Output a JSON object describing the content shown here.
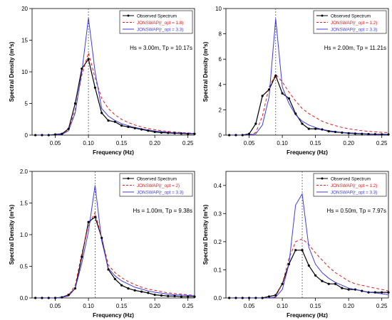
{
  "colors": {
    "observed": "#000000",
    "jonswap_opt": "#e41a1c",
    "jonswap_33": "#3b3bf0",
    "peak_line": "#555555"
  },
  "chart_data": [
    {
      "type": "line",
      "xlabel": "Frequency (Hz)",
      "ylabel": "Spectral Density (m²s)",
      "xlim": [
        0.015,
        0.26
      ],
      "ylim": [
        0,
        20
      ],
      "xticks": [
        "0.05",
        "0.10",
        "0.15",
        "0.20",
        "0.25"
      ],
      "yticks": [
        "0",
        "5",
        "10",
        "15",
        "20"
      ],
      "peak_line_x": 0.1,
      "annotation": "Hs = 3.00m,  Tp = 10.17s",
      "legend_position": "top-right",
      "series": [
        {
          "name": "Observed Spectrum",
          "style": "solid-markers",
          "x": [
            0.02,
            0.03,
            0.04,
            0.05,
            0.06,
            0.07,
            0.08,
            0.09,
            0.1,
            0.11,
            0.12,
            0.13,
            0.14,
            0.15,
            0.16,
            0.17,
            0.18,
            0.19,
            0.2,
            0.21,
            0.22,
            0.23,
            0.24,
            0.25,
            0.26
          ],
          "y": [
            0,
            0,
            0,
            0.1,
            0.2,
            1.0,
            5.0,
            10.5,
            12.0,
            7.5,
            3.5,
            2.3,
            2.1,
            1.5,
            1.3,
            1.1,
            0.9,
            0.7,
            0.5,
            0.4,
            0.35,
            0.3,
            0.25,
            0.2,
            0.2
          ]
        },
        {
          "name": "JONSWAP(r_opt = 1.8)",
          "style": "dashed",
          "x": [
            0.02,
            0.03,
            0.04,
            0.05,
            0.06,
            0.07,
            0.08,
            0.09,
            0.1,
            0.11,
            0.12,
            0.13,
            0.14,
            0.15,
            0.16,
            0.17,
            0.18,
            0.19,
            0.2,
            0.21,
            0.22,
            0.23,
            0.24,
            0.25,
            0.26
          ],
          "y": [
            0,
            0,
            0,
            0,
            0.1,
            0.9,
            4.0,
            9.5,
            13.0,
            9.0,
            5.8,
            4.2,
            3.2,
            2.5,
            2.0,
            1.6,
            1.3,
            1.05,
            0.85,
            0.7,
            0.6,
            0.5,
            0.4,
            0.35,
            0.3
          ]
        },
        {
          "name": "JONSWAP(r_opt = 3.3)",
          "style": "solid",
          "x": [
            0.02,
            0.03,
            0.04,
            0.05,
            0.06,
            0.07,
            0.08,
            0.09,
            0.1,
            0.11,
            0.12,
            0.13,
            0.14,
            0.15,
            0.16,
            0.17,
            0.18,
            0.19,
            0.2,
            0.21,
            0.22,
            0.23,
            0.24,
            0.25,
            0.26
          ],
          "y": [
            0,
            0,
            0,
            0,
            0.1,
            0.7,
            3.5,
            10.0,
            18.5,
            10.0,
            4.2,
            3.0,
            2.3,
            1.8,
            1.5,
            1.2,
            1.0,
            0.8,
            0.65,
            0.55,
            0.45,
            0.38,
            0.32,
            0.28,
            0.24
          ]
        }
      ]
    },
    {
      "type": "line",
      "xlabel": "Frequency (Hz)",
      "ylabel": "Spectral Density (m²s)",
      "xlim": [
        0.015,
        0.26
      ],
      "ylim": [
        0,
        10
      ],
      "xticks": [
        "0.05",
        "0.10",
        "0.15",
        "0.20",
        "0.25"
      ],
      "yticks": [
        "0",
        "2",
        "4",
        "6",
        "8",
        "10"
      ],
      "peak_line_x": 0.09,
      "annotation": "Hs = 2.00m,  Tp = 11.21s",
      "legend_position": "top-right",
      "series": [
        {
          "name": "Observed Spectrum",
          "style": "solid-markers",
          "x": [
            0.02,
            0.03,
            0.04,
            0.05,
            0.06,
            0.07,
            0.08,
            0.09,
            0.1,
            0.11,
            0.12,
            0.13,
            0.14,
            0.15,
            0.16,
            0.17,
            0.18,
            0.19,
            0.2,
            0.21,
            0.22,
            0.23,
            0.24,
            0.25,
            0.26
          ],
          "y": [
            0,
            0,
            0,
            0.1,
            0.9,
            3.1,
            3.6,
            4.7,
            3.3,
            2.9,
            1.7,
            0.9,
            0.5,
            0.5,
            0.45,
            0.3,
            0.25,
            0.2,
            0.15,
            0.12,
            0.1,
            0.08,
            0.07,
            0.06,
            0.05
          ]
        },
        {
          "name": "JONSWAP(r_opt = 1.2)",
          "style": "dashed",
          "x": [
            0.02,
            0.03,
            0.04,
            0.05,
            0.06,
            0.07,
            0.08,
            0.09,
            0.1,
            0.11,
            0.12,
            0.13,
            0.14,
            0.15,
            0.16,
            0.17,
            0.18,
            0.19,
            0.2,
            0.21,
            0.22,
            0.23,
            0.24,
            0.25,
            0.26
          ],
          "y": [
            0,
            0,
            0,
            0,
            0.2,
            1.5,
            3.8,
            4.8,
            4.2,
            3.4,
            2.7,
            2.1,
            1.7,
            1.4,
            1.1,
            0.9,
            0.75,
            0.6,
            0.5,
            0.42,
            0.35,
            0.3,
            0.26,
            0.22,
            0.2
          ]
        },
        {
          "name": "JONSWAP(r_opt = 3.3)",
          "style": "solid",
          "x": [
            0.02,
            0.03,
            0.04,
            0.05,
            0.06,
            0.07,
            0.08,
            0.09,
            0.1,
            0.11,
            0.12,
            0.13,
            0.14,
            0.15,
            0.16,
            0.17,
            0.18,
            0.19,
            0.2,
            0.21,
            0.22,
            0.23,
            0.24,
            0.25,
            0.26
          ],
          "y": [
            0,
            0,
            0,
            0,
            0.1,
            0.8,
            3.0,
            9.2,
            3.8,
            2.5,
            1.6,
            1.1,
            0.8,
            0.6,
            0.45,
            0.35,
            0.28,
            0.22,
            0.18,
            0.15,
            0.12,
            0.1,
            0.08,
            0.07,
            0.06
          ]
        }
      ]
    },
    {
      "type": "line",
      "xlabel": "Frequency (Hz)",
      "ylabel": "Spectral Density (m²s)",
      "xlim": [
        0.015,
        0.26
      ],
      "ylim": [
        0,
        2.0
      ],
      "xticks": [
        "0.05",
        "0.10",
        "0.15",
        "0.20",
        "0.25"
      ],
      "yticks": [
        "0.0",
        "0.5",
        "1.0",
        "1.5",
        "2.0"
      ],
      "peak_line_x": 0.11,
      "annotation": "Hs = 1.00m,  Tp = 9.38s",
      "legend_position": "top-right",
      "series": [
        {
          "name": "Observed Spectrum",
          "style": "solid-markers",
          "x": [
            0.02,
            0.03,
            0.04,
            0.05,
            0.06,
            0.07,
            0.08,
            0.09,
            0.1,
            0.11,
            0.12,
            0.13,
            0.14,
            0.15,
            0.16,
            0.17,
            0.18,
            0.19,
            0.2,
            0.21,
            0.22,
            0.23,
            0.24,
            0.25,
            0.26
          ],
          "y": [
            0,
            0,
            0,
            0,
            0.01,
            0.05,
            0.15,
            0.65,
            1.2,
            1.28,
            0.95,
            0.45,
            0.3,
            0.2,
            0.15,
            0.12,
            0.1,
            0.08,
            0.05,
            0.04,
            0.03,
            0.03,
            0.02,
            0.02,
            0.02
          ]
        },
        {
          "name": "JONSWAP(r_opt = 2)",
          "style": "dashed",
          "x": [
            0.02,
            0.03,
            0.04,
            0.05,
            0.06,
            0.07,
            0.08,
            0.09,
            0.1,
            0.11,
            0.12,
            0.13,
            0.14,
            0.15,
            0.16,
            0.17,
            0.18,
            0.19,
            0.2,
            0.21,
            0.22,
            0.23,
            0.24,
            0.25,
            0.26
          ],
          "y": [
            0,
            0,
            0,
            0,
            0.01,
            0.04,
            0.2,
            0.7,
            1.15,
            1.35,
            0.95,
            0.52,
            0.4,
            0.32,
            0.26,
            0.21,
            0.17,
            0.14,
            0.12,
            0.1,
            0.08,
            0.07,
            0.06,
            0.05,
            0.04
          ]
        },
        {
          "name": "JONSWAP(r_opt = 3.3)",
          "style": "solid",
          "x": [
            0.02,
            0.03,
            0.04,
            0.05,
            0.06,
            0.07,
            0.08,
            0.09,
            0.1,
            0.11,
            0.12,
            0.13,
            0.14,
            0.15,
            0.16,
            0.17,
            0.18,
            0.19,
            0.2,
            0.21,
            0.22,
            0.23,
            0.24,
            0.25,
            0.26
          ],
          "y": [
            0,
            0,
            0,
            0,
            0.01,
            0.03,
            0.15,
            0.55,
            1.05,
            1.78,
            0.9,
            0.47,
            0.35,
            0.27,
            0.22,
            0.17,
            0.14,
            0.11,
            0.09,
            0.075,
            0.06,
            0.05,
            0.045,
            0.04,
            0.035
          ]
        }
      ]
    },
    {
      "type": "line",
      "xlabel": "Frequency (Hz)",
      "ylabel": "Spectral Density (m²s)",
      "xlim": [
        0.015,
        0.26
      ],
      "ylim": [
        0,
        0.45
      ],
      "xticks": [
        "0.05",
        "0.10",
        "0.15",
        "0.20",
        "0.25"
      ],
      "yticks": [
        "0.0",
        "0.1",
        "0.2",
        "0.3",
        "0.4"
      ],
      "peak_line_x": 0.13,
      "annotation": "Hs = 0.50m,  Tp = 7.97s",
      "legend_position": "top-right",
      "series": [
        {
          "name": "Observed Spectrum",
          "style": "solid-markers",
          "x": [
            0.02,
            0.03,
            0.04,
            0.05,
            0.06,
            0.07,
            0.08,
            0.09,
            0.1,
            0.11,
            0.12,
            0.13,
            0.14,
            0.15,
            0.16,
            0.17,
            0.18,
            0.19,
            0.2,
            0.21,
            0.22,
            0.23,
            0.24,
            0.25,
            0.26
          ],
          "y": [
            0,
            0,
            0,
            0,
            0,
            0,
            0.005,
            0.01,
            0.05,
            0.12,
            0.17,
            0.17,
            0.115,
            0.08,
            0.06,
            0.05,
            0.05,
            0.035,
            0.03,
            0.03,
            0.025,
            0.02,
            0.02,
            0.02,
            0.02
          ]
        },
        {
          "name": "JONSWAP(r_opt = 1.2)",
          "style": "dashed",
          "x": [
            0.02,
            0.03,
            0.04,
            0.05,
            0.06,
            0.07,
            0.08,
            0.09,
            0.1,
            0.11,
            0.12,
            0.13,
            0.14,
            0.15,
            0.16,
            0.17,
            0.18,
            0.19,
            0.2,
            0.21,
            0.22,
            0.23,
            0.24,
            0.25,
            0.26
          ],
          "y": [
            0,
            0,
            0,
            0,
            0,
            0,
            0,
            0.005,
            0.05,
            0.14,
            0.2,
            0.21,
            0.19,
            0.16,
            0.135,
            0.11,
            0.09,
            0.075,
            0.06,
            0.05,
            0.045,
            0.04,
            0.035,
            0.03,
            0.025
          ]
        },
        {
          "name": "JONSWAP(r_opt = 3.3)",
          "style": "solid",
          "x": [
            0.02,
            0.03,
            0.04,
            0.05,
            0.06,
            0.07,
            0.08,
            0.09,
            0.1,
            0.11,
            0.12,
            0.13,
            0.14,
            0.15,
            0.16,
            0.17,
            0.18,
            0.19,
            0.2,
            0.21,
            0.22,
            0.23,
            0.24,
            0.25,
            0.26
          ],
          "y": [
            0,
            0,
            0,
            0,
            0,
            0,
            0,
            0.003,
            0.03,
            0.12,
            0.33,
            0.37,
            0.18,
            0.12,
            0.09,
            0.07,
            0.055,
            0.045,
            0.035,
            0.03,
            0.025,
            0.02,
            0.018,
            0.015,
            0.012
          ]
        }
      ]
    }
  ]
}
